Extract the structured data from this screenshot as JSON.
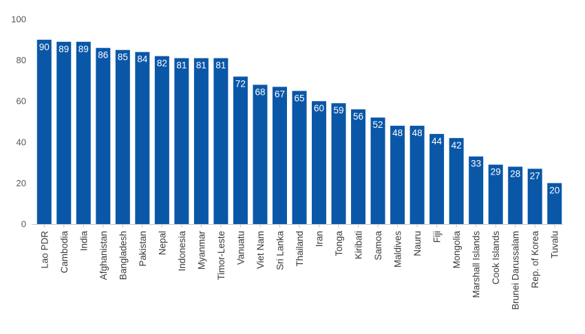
{
  "chart_data": {
    "type": "bar",
    "title": "",
    "xlabel": "",
    "ylabel": "",
    "ylim": [
      0,
      100
    ],
    "yticks": [
      0,
      20,
      40,
      60,
      80,
      100
    ],
    "grid": false,
    "bar_color": "#0a57a8",
    "label_color": "#ffffff",
    "categories": [
      "Lao PDR",
      "Cambodia",
      "India",
      "Afghanistan",
      "Bangladesh",
      "Pakistan",
      "Nepal",
      "Indonesia",
      "Myanmar",
      "Timor-Leste",
      "Vanuatu",
      "Viet Nam",
      "Sri Lanka",
      "Thailand",
      "Iran",
      "Tonga",
      "Kiribati",
      "Samoa",
      "Maldives",
      "Nauru",
      "Fiji",
      "Mongolia",
      "Marshall Islands",
      "Cook Islands",
      "Brunei Darussalam",
      "Rep. of Korea",
      "Tuvalu"
    ],
    "values": [
      90,
      89,
      89,
      86,
      85,
      84,
      82,
      81,
      81,
      81,
      72,
      68,
      67,
      65,
      60,
      59,
      56,
      52,
      48,
      48,
      44,
      42,
      33,
      29,
      28,
      27,
      20
    ]
  }
}
